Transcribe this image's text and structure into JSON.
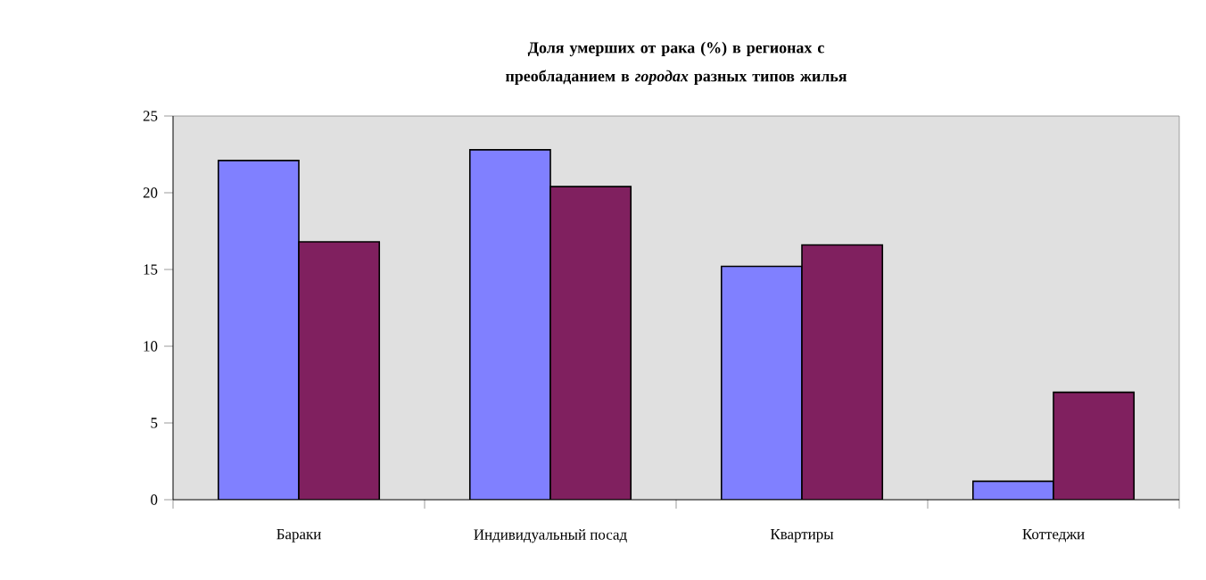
{
  "chart_data": {
    "type": "bar",
    "title": "Доля умерших от рака (%) в регионах с преобладанием в *городах* разных типов жилья",
    "categories": [
      "Бараки",
      "Индивидуальный посад",
      "Квартиры",
      "Коттеджи"
    ],
    "series": [
      {
        "color": "#8080ff",
        "values": [
          22.1,
          22.8,
          15.2,
          1.2
        ]
      },
      {
        "color": "#80205f",
        "values": [
          16.8,
          20.4,
          16.6,
          7.0
        ]
      }
    ],
    "ylim": [
      0,
      25
    ],
    "yticks": [
      0,
      5,
      10,
      15,
      20,
      25
    ],
    "grid": false
  }
}
